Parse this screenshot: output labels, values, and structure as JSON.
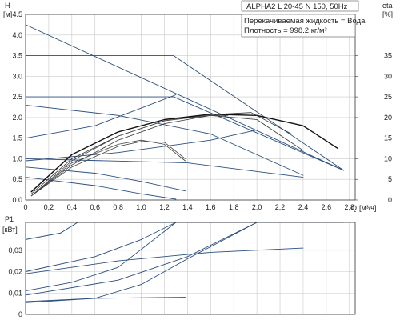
{
  "header": {
    "title": "ALPHA2 L 20-45 N 150, 50Hz",
    "info_line_1": "Перекачиваемая жидкость = Вода",
    "info_line_2": "Плотность = 998.2 кг/м³"
  },
  "chart_data": [
    {
      "type": "line",
      "name": "head",
      "left_axis": {
        "symbol": "H",
        "unit": "[м]",
        "ylim": [
          0,
          4.5
        ],
        "ticks": [
          "0.0",
          "0.5",
          "1.0",
          "1.5",
          "2.0",
          "2.5",
          "3.0",
          "3.5",
          "4.0",
          "4.5"
        ]
      },
      "right_axis": {
        "symbol": "eta",
        "unit": "[%]",
        "ylim": [
          0,
          45
        ],
        "ticks": [
          "0",
          "5",
          "10",
          "15",
          "20",
          "25",
          "30",
          "35"
        ]
      },
      "x_axis": {
        "symbol": "Q",
        "unit": "[м³/ч]",
        "xlim": [
          0,
          2.85
        ],
        "ticks": [
          "0",
          "0,2",
          "0,4",
          "0,6",
          "0,8",
          "1,0",
          "1,2",
          "1,4",
          "1,6",
          "1,8",
          "2,0",
          "2,2",
          "2,4",
          "2,6",
          "2,8"
        ]
      },
      "grid": true,
      "series": [
        {
          "color": "#2a4f7f",
          "width": 0.9,
          "points": [
            [
              0,
              4.25
            ],
            [
              2.75,
              0.72
            ]
          ]
        },
        {
          "color": "#2a4f7f",
          "width": 0.9,
          "points": [
            [
              0,
              3.5
            ],
            [
              1.28,
              3.5
            ],
            [
              2.75,
              0.72
            ]
          ]
        },
        {
          "color": "#2a4f7f",
          "width": 0.9,
          "points": [
            [
              0,
              2.5
            ],
            [
              1.28,
              2.5
            ],
            [
              2.75,
              0.72
            ]
          ]
        },
        {
          "color": "#2a4f7f",
          "width": 0.9,
          "points": [
            [
              0,
              2.3
            ],
            [
              0.8,
              2.05
            ],
            [
              1.6,
              1.6
            ],
            [
              2.4,
              0.6
            ]
          ]
        },
        {
          "color": "#2a4f7f",
          "width": 0.9,
          "points": [
            [
              0,
              0.8
            ],
            [
              0.6,
              0.65
            ],
            [
              1.0,
              0.45
            ],
            [
              1.38,
              0.22
            ]
          ]
        },
        {
          "color": "#2a4f7f",
          "width": 0.9,
          "points": [
            [
              0,
              1.5
            ],
            [
              0.6,
              1.8
            ],
            [
              1.3,
              2.55
            ]
          ]
        },
        {
          "color": "#2a4f7f",
          "width": 0.9,
          "points": [
            [
              0,
              0.95
            ],
            [
              0.8,
              1.15
            ],
            [
              1.6,
              1.45
            ],
            [
              2.0,
              1.7
            ]
          ]
        },
        {
          "color": "#2a4f7f",
          "width": 0.9,
          "points": [
            [
              0,
              0.55
            ],
            [
              0.6,
              0.35
            ],
            [
              1.0,
              0.15
            ],
            [
              1.3,
              0.02
            ]
          ]
        },
        {
          "color": "#2a4f7f",
          "width": 0.9,
          "points": [
            [
              0,
              1.0
            ],
            [
              1.4,
              0.9
            ],
            [
              2.4,
              0.55
            ]
          ]
        },
        {
          "color": "#111111",
          "width": 1.4,
          "points": [
            [
              0.05,
              0.2
            ],
            [
              0.4,
              1.1
            ],
            [
              0.8,
              1.65
            ],
            [
              1.2,
              1.95
            ],
            [
              1.6,
              2.08
            ],
            [
              2.0,
              2.05
            ],
            [
              2.4,
              1.8
            ],
            [
              2.7,
              1.25
            ]
          ]
        },
        {
          "color": "#333333",
          "width": 0.8,
          "points": [
            [
              0.05,
              0.15
            ],
            [
              0.4,
              1.0
            ],
            [
              0.8,
              1.55
            ],
            [
              1.2,
              1.92
            ],
            [
              1.6,
              2.07
            ],
            [
              1.95,
              2.12
            ],
            [
              2.3,
              1.6
            ]
          ]
        },
        {
          "color": "#333333",
          "width": 0.8,
          "points": [
            [
              0.05,
              0.1
            ],
            [
              0.4,
              0.85
            ],
            [
              0.8,
              1.45
            ],
            [
              1.2,
              1.85
            ],
            [
              1.6,
              2.05
            ],
            [
              2.0,
              1.95
            ],
            [
              2.4,
              1.2
            ]
          ]
        },
        {
          "color": "#444444",
          "width": 0.8,
          "points": [
            [
              0.05,
              0.1
            ],
            [
              0.4,
              0.95
            ],
            [
              0.8,
              1.55
            ],
            [
              1.2,
              1.92
            ],
            [
              1.6,
              2.05
            ],
            [
              1.75,
              2.05
            ]
          ]
        },
        {
          "color": "#444444",
          "width": 0.8,
          "points": [
            [
              0.05,
              0.1
            ],
            [
              0.4,
              0.9
            ],
            [
              0.8,
              1.35
            ],
            [
              1.0,
              1.45
            ],
            [
              1.2,
              1.35
            ],
            [
              1.38,
              0.95
            ]
          ]
        },
        {
          "color": "#444444",
          "width": 0.8,
          "points": [
            [
              0.05,
              0.1
            ],
            [
              0.4,
              0.8
            ],
            [
              0.8,
              1.3
            ],
            [
              1.0,
              1.42
            ],
            [
              1.2,
              1.4
            ],
            [
              1.38,
              1.0
            ]
          ]
        }
      ]
    },
    {
      "type": "line",
      "name": "power",
      "left_axis": {
        "symbol": "P1",
        "unit": "[кВт]",
        "ylim": [
          0,
          0.043
        ],
        "ticks": [
          "0",
          "0,01",
          "0,02",
          "0,03"
        ]
      },
      "x_axis": {
        "xlim": [
          0,
          2.85
        ]
      },
      "grid": true,
      "series": [
        {
          "color": "#2a4f7f",
          "width": 1.0,
          "points": [
            [
              0,
              0.035
            ],
            [
              0.3,
              0.038
            ],
            [
              0.45,
              0.043
            ],
            [
              2.75,
              0.043
            ]
          ]
        },
        {
          "color": "#2a4f7f",
          "width": 0.9,
          "points": [
            [
              0,
              0.02
            ],
            [
              0.6,
              0.027
            ],
            [
              1.0,
              0.035
            ],
            [
              1.3,
              0.043
            ]
          ]
        },
        {
          "color": "#2a4f7f",
          "width": 0.9,
          "points": [
            [
              0,
              0.019
            ],
            [
              0.8,
              0.025
            ],
            [
              1.6,
              0.029
            ],
            [
              2.4,
              0.031
            ]
          ]
        },
        {
          "color": "#2a4f7f",
          "width": 0.9,
          "points": [
            [
              0,
              0.011
            ],
            [
              0.4,
              0.015
            ],
            [
              0.8,
              0.022
            ],
            [
              1.3,
              0.043
            ]
          ]
        },
        {
          "color": "#2a4f7f",
          "width": 0.9,
          "points": [
            [
              0,
              0.009
            ],
            [
              0.8,
              0.016
            ],
            [
              1.4,
              0.027
            ],
            [
              2.0,
              0.043
            ]
          ]
        },
        {
          "color": "#2a4f7f",
          "width": 0.9,
          "points": [
            [
              0,
              0.006
            ],
            [
              0.6,
              0.0075
            ],
            [
              1.38,
              0.008
            ]
          ]
        },
        {
          "color": "#2a4f7f",
          "width": 0.9,
          "points": [
            [
              0,
              0.0055
            ],
            [
              0.6,
              0.0075
            ],
            [
              1.0,
              0.014
            ],
            [
              1.4,
              0.026
            ],
            [
              2.0,
              0.043
            ]
          ]
        }
      ]
    }
  ]
}
